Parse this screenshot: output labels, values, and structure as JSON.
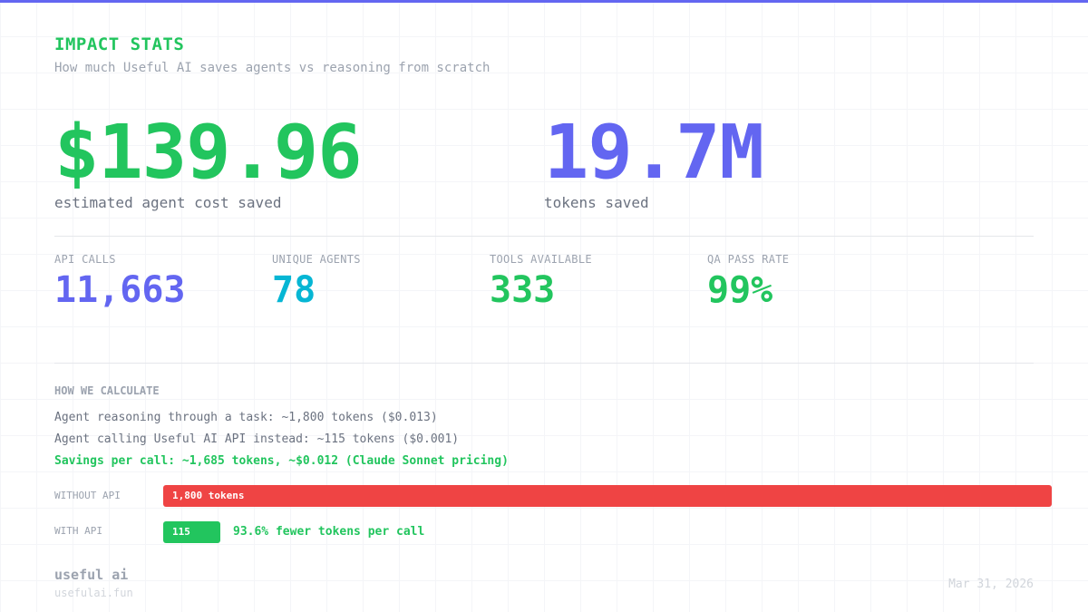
{
  "header": {
    "title": "IMPACT STATS",
    "subtitle": "How much Useful AI saves agents vs reasoning from scratch"
  },
  "hero": {
    "cost_value": "$139.96",
    "cost_label": "estimated agent cost saved",
    "tokens_value": "19.7M",
    "tokens_label": "tokens saved"
  },
  "stats": [
    {
      "label": "API CALLS",
      "value": "11,663",
      "color": "#6366f1"
    },
    {
      "label": "UNIQUE AGENTS",
      "value": "78",
      "color": "#06b6d4"
    },
    {
      "label": "TOOLS AVAILABLE",
      "value": "333",
      "color": "#22c55e"
    },
    {
      "label": "QA PASS RATE",
      "value": "99%",
      "color": "#22c55e"
    }
  ],
  "calculation": {
    "heading": "HOW WE CALCULATE",
    "line1": "Agent reasoning through a task: ~1,800 tokens ($0.013)",
    "line2": "Agent calling Useful AI API instead: ~115 tokens ($0.001)",
    "line3": "Savings per call: ~1,685 tokens, ~$0.012 (Claude Sonnet pricing)"
  },
  "comparison": {
    "without_label": "WITHOUT API",
    "without_value": "1,800 tokens",
    "without_tokens": 1800,
    "with_label": "WITH API",
    "with_value": "115",
    "with_tokens": 115,
    "note": "93.6% fewer tokens per call"
  },
  "footer": {
    "brand": "useful ai",
    "domain": "usefulai.fun",
    "date": "Mar 31, 2026"
  },
  "colors": {
    "accent": "#6366f1",
    "green": "#22c55e",
    "cyan": "#06b6d4",
    "red": "#ef4444"
  }
}
